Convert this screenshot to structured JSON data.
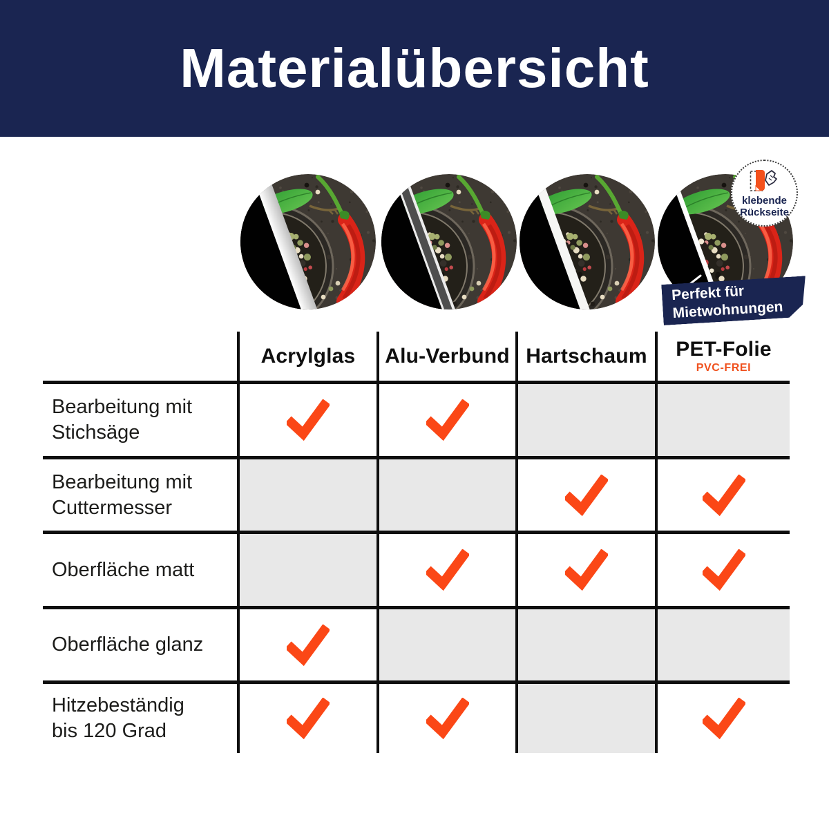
{
  "title": "Materialübersicht",
  "badge": {
    "line1": "klebende",
    "line2": "Rückseite"
  },
  "ribbon": {
    "line1": "Perfekt für",
    "line2": "Mietwohnungen"
  },
  "table": {
    "materials": [
      {
        "id": "acrylglas",
        "label": "Acrylglas",
        "sublabel": ""
      },
      {
        "id": "alu-verbund",
        "label": "Alu-Verbund",
        "sublabel": ""
      },
      {
        "id": "hartschaum",
        "label": "Hartschaum",
        "sublabel": ""
      },
      {
        "id": "pet-folie",
        "label": "PET-Folie",
        "sublabel": "PVC-FREI"
      }
    ],
    "rows": [
      {
        "label_lines": [
          "Bearbeitung mit",
          "Stichsäge"
        ],
        "checks": [
          true,
          true,
          false,
          false
        ]
      },
      {
        "label_lines": [
          "Bearbeitung mit",
          "Cuttermesser"
        ],
        "checks": [
          false,
          false,
          true,
          true
        ]
      },
      {
        "label_lines": [
          "Oberfläche matt"
        ],
        "checks": [
          false,
          true,
          true,
          true
        ]
      },
      {
        "label_lines": [
          "Oberfläche glanz"
        ],
        "checks": [
          true,
          false,
          false,
          false
        ]
      },
      {
        "label_lines": [
          "Hitzebeständig",
          "bis 120 Grad"
        ],
        "checks": [
          true,
          true,
          false,
          true
        ]
      }
    ]
  },
  "colors": {
    "navy": "#1a2551",
    "check": "#fb4716",
    "orange_icon": "#f4511c",
    "orange_text": "#f0511e",
    "gray_cell": "#e8e8e8",
    "line": "#0e0e0e",
    "chili_red": "#da2418",
    "leaf_green": "#3ca03a"
  },
  "chart_data": {
    "type": "table",
    "title": "Materialübersicht",
    "columns": [
      "Acrylglas",
      "Alu-Verbund",
      "Hartschaum",
      "PET-Folie (PVC-FREI)"
    ],
    "rows": [
      "Bearbeitung mit Stichsäge",
      "Bearbeitung mit Cuttermesser",
      "Oberfläche matt",
      "Oberfläche glanz",
      "Hitzebeständig bis 120 Grad"
    ],
    "values": [
      [
        1,
        1,
        0,
        0
      ],
      [
        0,
        0,
        1,
        1
      ],
      [
        0,
        1,
        1,
        1
      ],
      [
        1,
        0,
        0,
        0
      ],
      [
        1,
        1,
        0,
        1
      ]
    ],
    "legend": "1 = orange checkmark (supported), 0 = gray empty cell (not supported)"
  }
}
